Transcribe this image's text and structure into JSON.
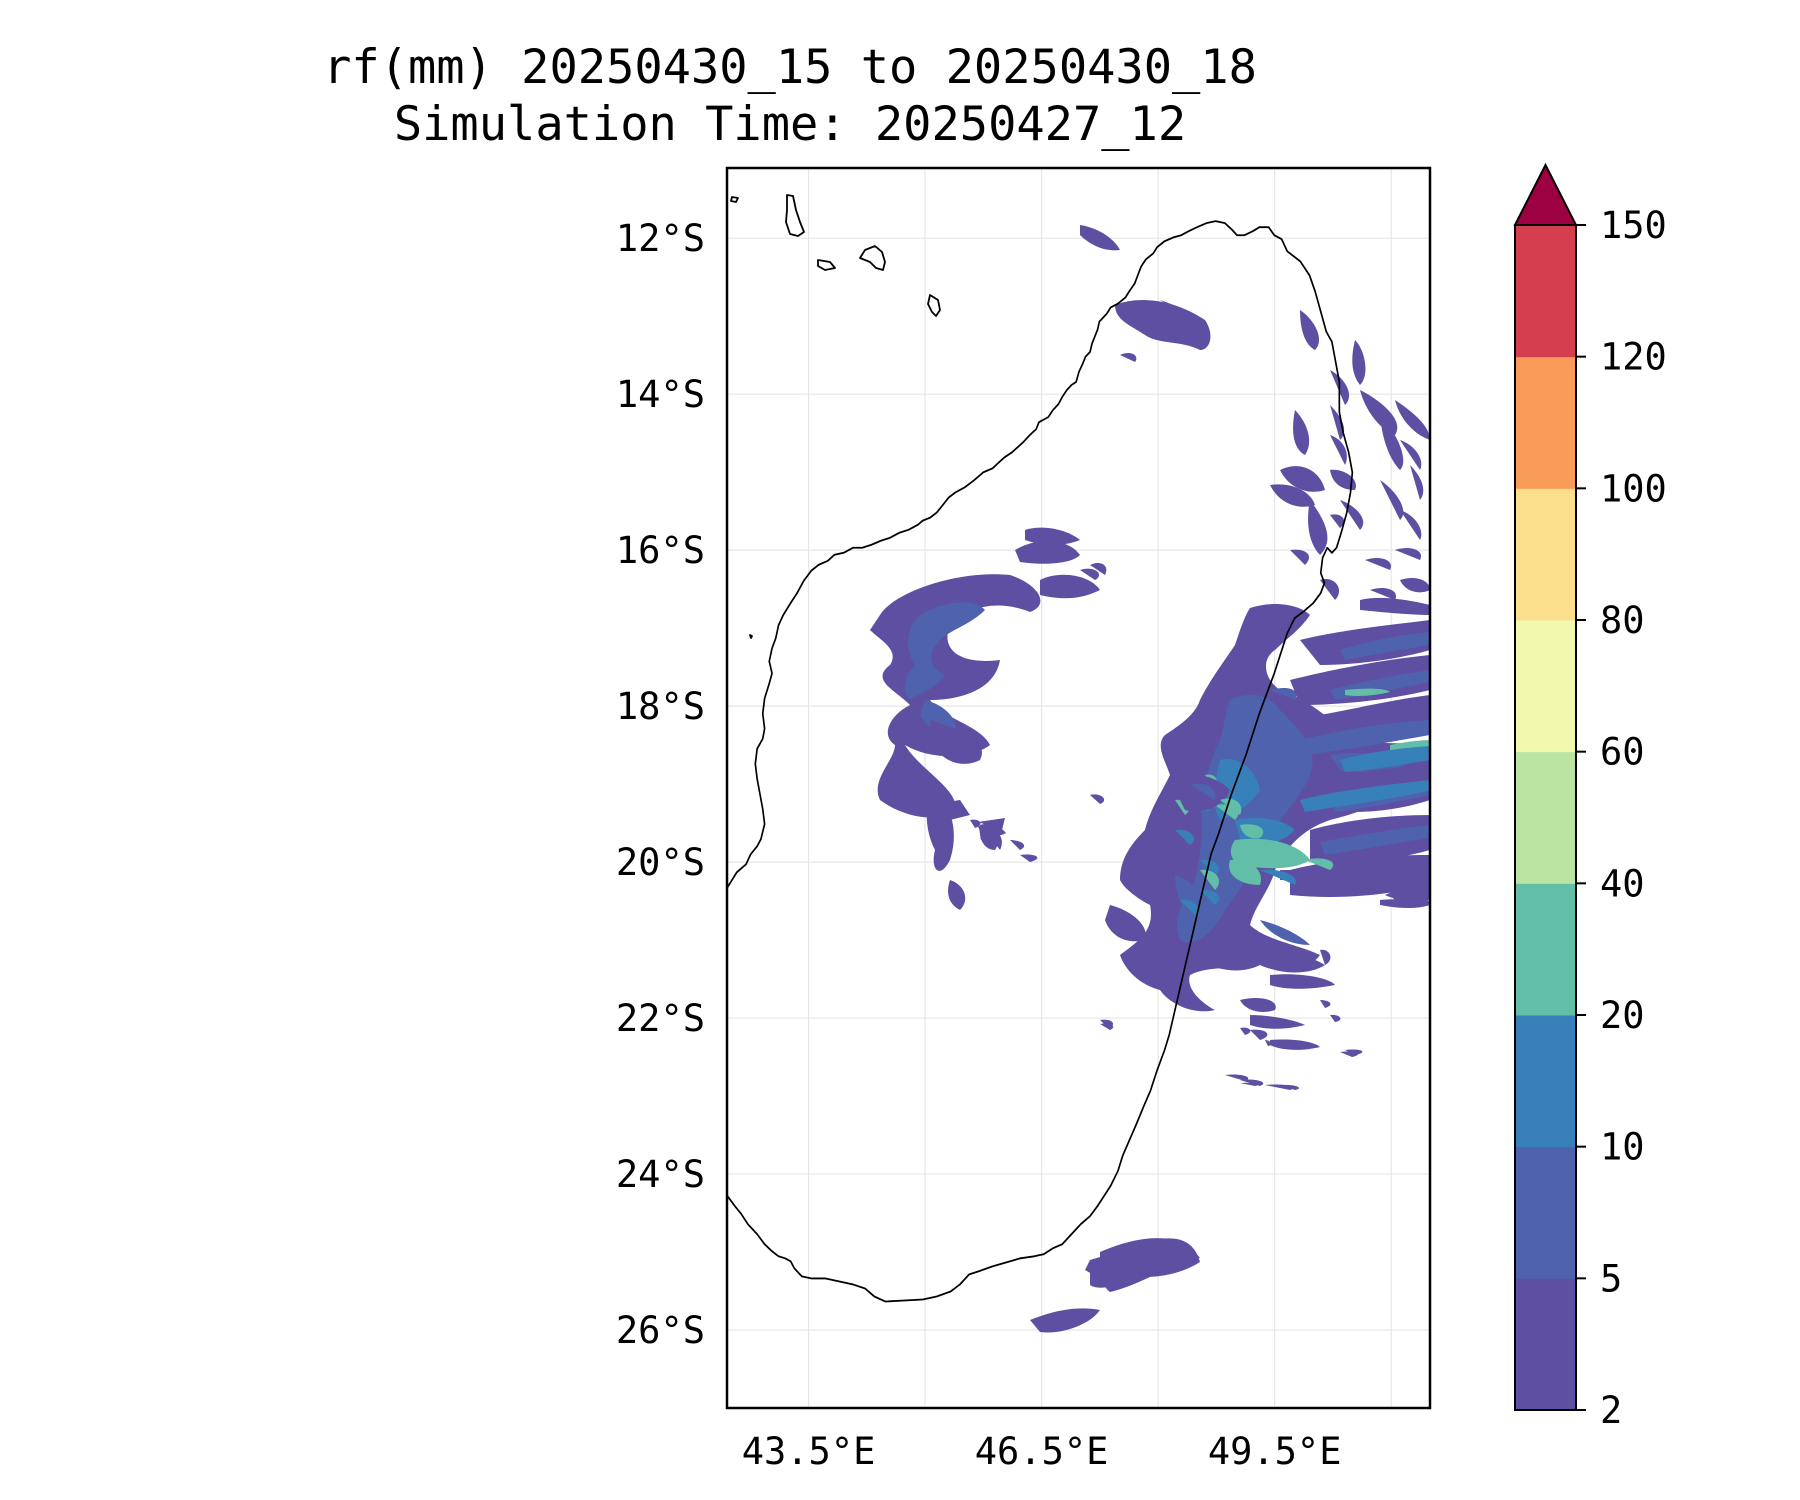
{
  "title": {
    "line1": "rf(mm) 20250430_15 to 20250430_18",
    "line2": "Simulation Time: 20250427_12"
  },
  "map": {
    "lon_range": [
      42.45,
      51.5
    ],
    "lat_range": [
      -27.0,
      -11.1
    ],
    "lon_ticks": [
      {
        "value": 43.5,
        "label": "43.5°E"
      },
      {
        "value": 46.5,
        "label": "46.5°E"
      },
      {
        "value": 49.5,
        "label": "49.5°E"
      }
    ],
    "lat_ticks": [
      {
        "value": -12,
        "label": "12°S"
      },
      {
        "value": -14,
        "label": "14°S"
      },
      {
        "value": -16,
        "label": "16°S"
      },
      {
        "value": -18,
        "label": "18°S"
      },
      {
        "value": -20,
        "label": "20°S"
      },
      {
        "value": -22,
        "label": "22°S"
      },
      {
        "value": -24,
        "label": "24°S"
      },
      {
        "value": -26,
        "label": "26°S"
      }
    ],
    "grid_lons": [
      43.5,
      45.0,
      46.5,
      48.0,
      49.5,
      51.0
    ],
    "grid_lats": [
      -12,
      -14,
      -16,
      -18,
      -20,
      -22,
      -24,
      -26
    ],
    "gridlines": true
  },
  "colorbar": {
    "levels": [
      2,
      5,
      10,
      20,
      40,
      60,
      80,
      100,
      120,
      150
    ],
    "labels": [
      "2",
      "5",
      "10",
      "20",
      "40",
      "60",
      "80",
      "100",
      "120",
      "150"
    ],
    "colors": [
      "#5e4fa2",
      "#4f62ad",
      "#3880b9",
      "#62bea6",
      "#bbe3a1",
      "#f2f8ad",
      "#fbdf8d",
      "#f99c59",
      "#d53e4f"
    ],
    "extend_color": "#9e0142",
    "extend": "max"
  }
}
